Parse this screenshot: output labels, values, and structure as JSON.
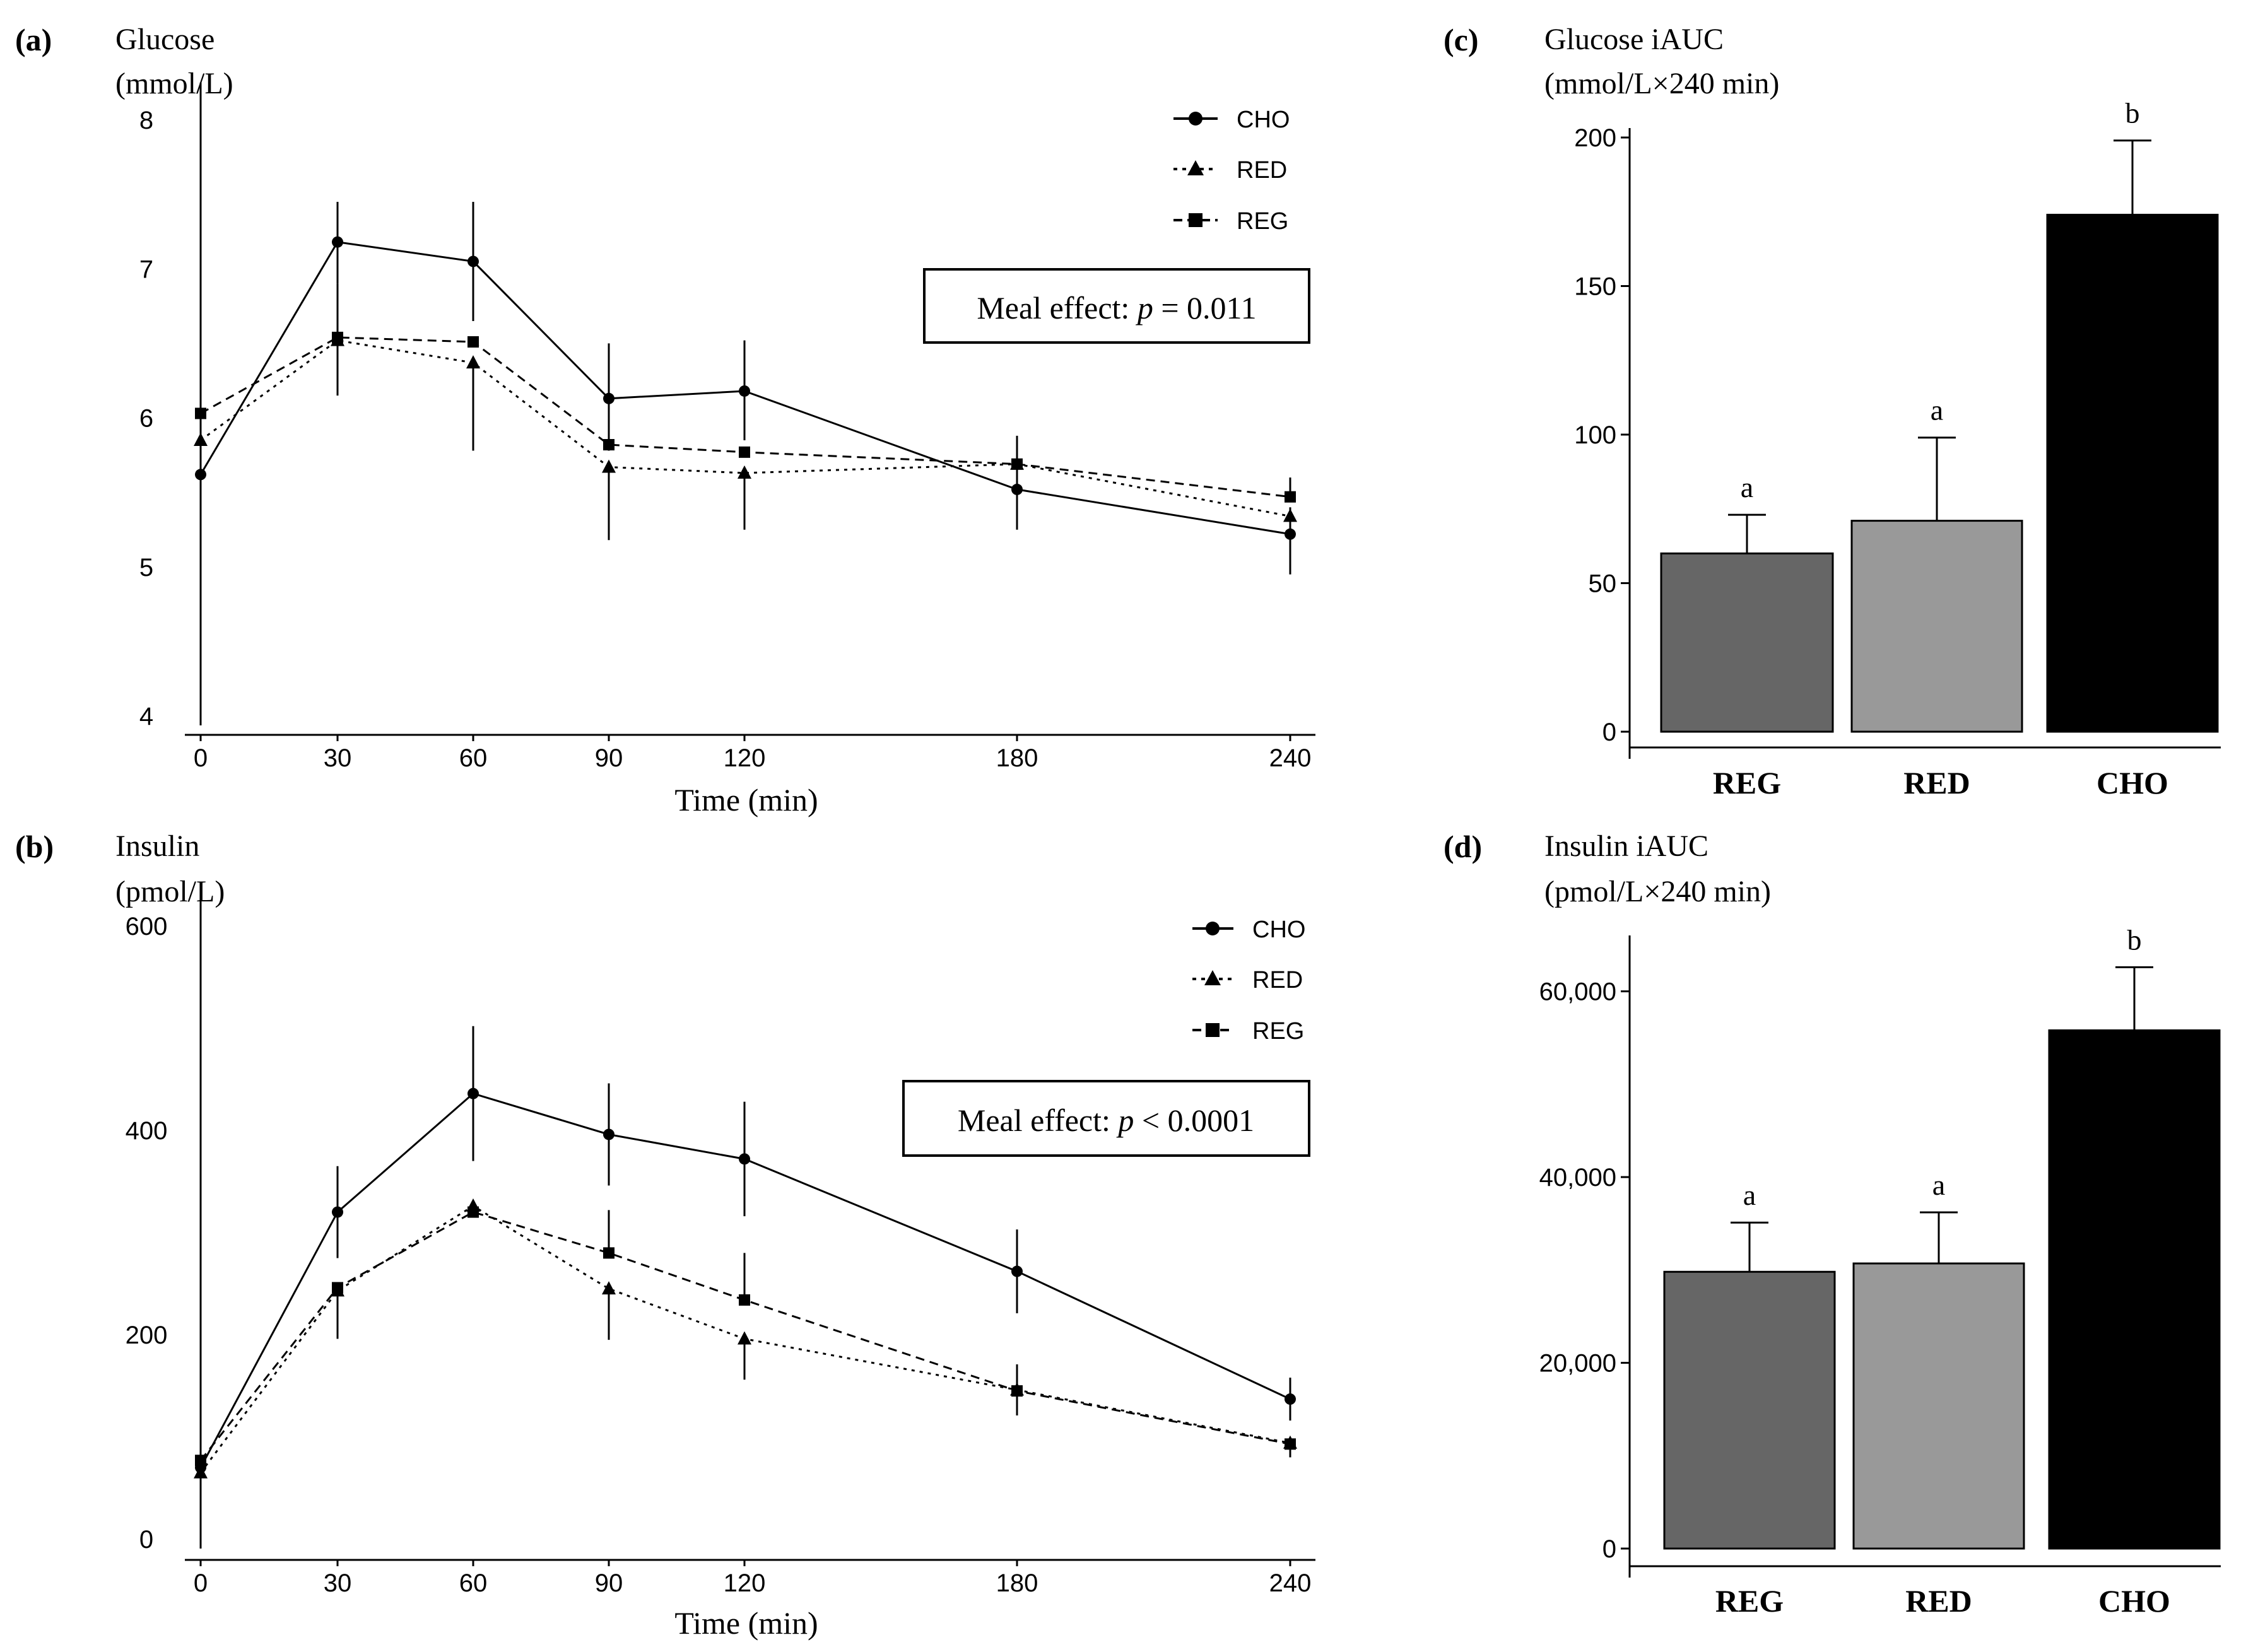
{
  "panels": {
    "a": {
      "label": "(a)",
      "title": "Glucose",
      "unit": "(mmol/L)",
      "xlabel": "Time (min)",
      "legend": [
        "CHO",
        "RED",
        "REG"
      ],
      "stat_prefix": "Meal effect: ",
      "stat_p": "p",
      "stat_value": " = 0.011"
    },
    "b": {
      "label": "(b)",
      "title": "Insulin",
      "unit": "(pmol/L)",
      "xlabel": "Time (min)",
      "legend": [
        "CHO",
        "RED",
        "REG"
      ],
      "stat_prefix": "Meal effect: ",
      "stat_p": "p",
      "stat_value": " < 0.0001"
    },
    "c": {
      "label": "(c)",
      "title": "Glucose iAUC",
      "unit": "(mmol/L×240 min)"
    },
    "d": {
      "label": "(d)",
      "title": "Insulin iAUC",
      "unit": "(pmol/L×240 min)"
    }
  },
  "colors": {
    "REG": "#666666",
    "RED": "#999999",
    "CHO": "#000000"
  },
  "chart_data": [
    {
      "id": "a",
      "type": "line",
      "title": "Glucose",
      "ylabel": "Glucose (mmol/L)",
      "xlabel": "Time (min)",
      "x": [
        0,
        30,
        60,
        90,
        120,
        180,
        240
      ],
      "ylim": [
        4,
        8
      ],
      "yticks": [
        4,
        5,
        6,
        7,
        8
      ],
      "series": [
        {
          "name": "CHO",
          "marker": "circle",
          "dash": "solid",
          "values": [
            5.62,
            7.18,
            7.05,
            6.13,
            6.18,
            5.52,
            5.22
          ],
          "err_hi": [
            8.25,
            7.45,
            7.45,
            6.5,
            6.52,
            5.7,
            5.4
          ],
          "err_lo": [
            4.05,
            6.9,
            6.65,
            5.78,
            5.85,
            5.25,
            4.95
          ]
        },
        {
          "name": "RED",
          "marker": "triangle",
          "dash": "dotted",
          "values": [
            5.85,
            6.52,
            6.37,
            5.67,
            5.63,
            5.69,
            5.34
          ],
          "err_hi": [
            null,
            null,
            null,
            null,
            null,
            5.88,
            null
          ],
          "err_lo": [
            null,
            6.15,
            5.78,
            5.18,
            5.25,
            null,
            null
          ]
        },
        {
          "name": "REG",
          "marker": "square",
          "dash": "dashed",
          "values": [
            6.03,
            6.54,
            6.51,
            5.82,
            5.77,
            5.69,
            5.47
          ],
          "err_hi": [
            null,
            6.9,
            null,
            null,
            null,
            null,
            5.6
          ],
          "err_lo": [
            null,
            null,
            null,
            null,
            null,
            null,
            null
          ]
        }
      ],
      "annotation": "Meal effect: p = 0.011"
    },
    {
      "id": "b",
      "type": "line",
      "title": "Insulin",
      "ylabel": "Insulin (pmol/L)",
      "xlabel": "Time (min)",
      "x": [
        0,
        30,
        60,
        90,
        120,
        180,
        240
      ],
      "ylim": [
        0,
        600
      ],
      "yticks": [
        0,
        200,
        400,
        600
      ],
      "series": [
        {
          "name": "CHO",
          "marker": "circle",
          "dash": "solid",
          "values": [
            70,
            320,
            436,
            396,
            372,
            262,
            137
          ],
          "err_hi": [
            630,
            365,
            502,
            446,
            428,
            303,
            158
          ],
          "err_lo": [
            null,
            275,
            370,
            346,
            316,
            221,
            116
          ]
        },
        {
          "name": "RED",
          "marker": "triangle",
          "dash": "dotted",
          "values": [
            65,
            243,
            326,
            245,
            196,
            146,
            94
          ],
          "err_hi": [
            null,
            null,
            null,
            null,
            null,
            null,
            null
          ],
          "err_lo": [
            null,
            196,
            null,
            195,
            156,
            121,
            80
          ]
        },
        {
          "name": "REG",
          "marker": "square",
          "dash": "dashed",
          "values": [
            77,
            246,
            320,
            280,
            234,
            145,
            93
          ],
          "err_hi": [
            null,
            null,
            null,
            322,
            280,
            171,
            null
          ],
          "err_lo": [
            null,
            null,
            null,
            null,
            null,
            null,
            null
          ]
        }
      ],
      "annotation": "Meal effect: p < 0.0001"
    },
    {
      "id": "c",
      "type": "bar",
      "title": "Glucose iAUC",
      "ylabel": "mmol/L×240 min",
      "categories": [
        "REG",
        "RED",
        "CHO"
      ],
      "values": [
        60,
        71,
        174
      ],
      "errors": [
        13,
        28,
        25
      ],
      "letters": [
        "a",
        "a",
        "b"
      ],
      "ylim": [
        0,
        200
      ],
      "yticks": [
        0,
        50,
        100,
        150,
        200
      ]
    },
    {
      "id": "d",
      "type": "bar",
      "title": "Insulin iAUC",
      "ylabel": "pmol/L×240 min",
      "categories": [
        "REG",
        "RED",
        "CHO"
      ],
      "values": [
        29800,
        30700,
        55800
      ],
      "errors": [
        5300,
        5500,
        6800
      ],
      "letters": [
        "a",
        "a",
        "b"
      ],
      "ylim": [
        0,
        65000
      ],
      "yticks": [
        0,
        20000,
        40000,
        60000
      ],
      "ytick_labels": [
        "0",
        "20,000",
        "40,000",
        "60,000"
      ]
    }
  ]
}
